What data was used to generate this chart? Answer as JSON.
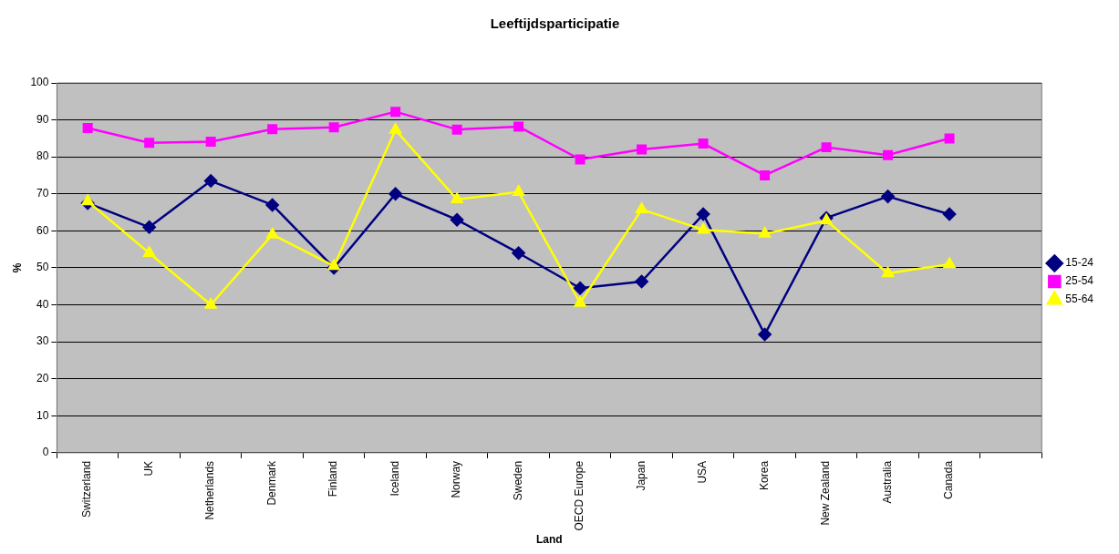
{
  "chart_data": {
    "type": "line",
    "title": "Leeftijdsparticipatie",
    "xlabel": "Land",
    "ylabel": "%",
    "categories": [
      "Switzerland",
      "UK",
      "Netherlands",
      "Denmark",
      "Finland",
      "Iceland",
      "Norway",
      "Sweden",
      "OECD Europe",
      "Japan",
      "USA",
      "Korea",
      "New Zealand",
      "Australia",
      "Canada",
      null
    ],
    "series": [
      {
        "name": "15-24",
        "color": "#000080",
        "marker": "diamond",
        "values": [
          67.5,
          61,
          73.5,
          67,
          50,
          70,
          63,
          54,
          44.5,
          46.3,
          64.5,
          32,
          63.5,
          69.3,
          64.5,
          null
        ]
      },
      {
        "name": "25-54",
        "color": "#ff00ff",
        "marker": "square",
        "values": [
          87.8,
          83.8,
          84.1,
          87.5,
          88,
          92.2,
          87.4,
          88.2,
          79.3,
          82,
          83.6,
          75,
          82.6,
          80.5,
          85,
          null
        ]
      },
      {
        "name": "55-64",
        "color": "#ffff00",
        "marker": "triangle",
        "values": [
          68,
          54,
          40,
          59,
          50.5,
          87.3,
          68.5,
          70.5,
          40.5,
          65.8,
          60.3,
          59.2,
          62.8,
          48.5,
          51,
          null
        ]
      }
    ],
    "ylim": [
      0,
      100
    ],
    "yticks": [
      0,
      10,
      20,
      30,
      40,
      50,
      60,
      70,
      80,
      90,
      100
    ],
    "grid": "y",
    "legend": "right"
  }
}
